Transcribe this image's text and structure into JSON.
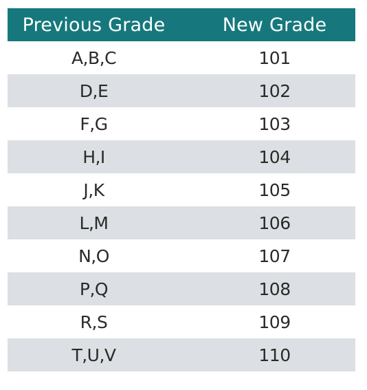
{
  "header": {
    "previous_grade": "Previous Grade",
    "new_grade": "New Grade"
  },
  "rows": [
    {
      "previous": "A,B,C",
      "new": "101"
    },
    {
      "previous": "D,E",
      "new": "102"
    },
    {
      "previous": "F,G",
      "new": "103"
    },
    {
      "previous": "H,I",
      "new": "104"
    },
    {
      "previous": "J,K",
      "new": "105"
    },
    {
      "previous": "L,M",
      "new": "106"
    },
    {
      "previous": "N,O",
      "new": "107"
    },
    {
      "previous": "P,Q",
      "new": "108"
    },
    {
      "previous": "R,S",
      "new": "109"
    },
    {
      "previous": "T,U,V",
      "new": "110"
    }
  ],
  "colors": {
    "header_background": "#16787c",
    "header_text": "#ffffff",
    "stripe_row": "#dcdfe3",
    "plain_row": "#ffffff",
    "cell_text": "#2a2a2a"
  }
}
